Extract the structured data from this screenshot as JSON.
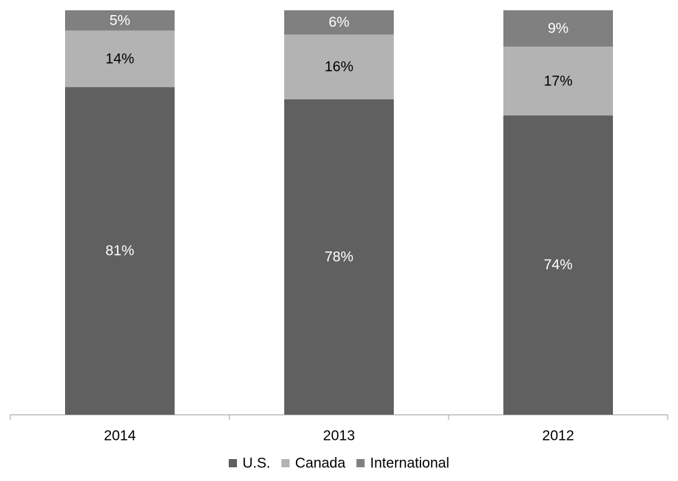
{
  "chart_data": {
    "type": "bar",
    "stacked": true,
    "categories": [
      "2014",
      "2013",
      "2012"
    ],
    "series": [
      {
        "name": "U.S.",
        "color": "#606060",
        "label_color": "#ffffff",
        "values": [
          81,
          78,
          74
        ],
        "labels": [
          "81%",
          "78%",
          "74%"
        ]
      },
      {
        "name": "Canada",
        "color": "#b3b3b3",
        "label_color": "#000000",
        "values": [
          14,
          16,
          17
        ],
        "labels": [
          "14%",
          "16%",
          "17%"
        ]
      },
      {
        "name": "International",
        "color": "#808080",
        "label_color": "#ffffff",
        "values": [
          5,
          6,
          9
        ],
        "labels": [
          "5%",
          "6%",
          "9%"
        ]
      }
    ],
    "ylim": [
      0,
      100
    ],
    "grid": false,
    "legend_position": "bottom"
  }
}
